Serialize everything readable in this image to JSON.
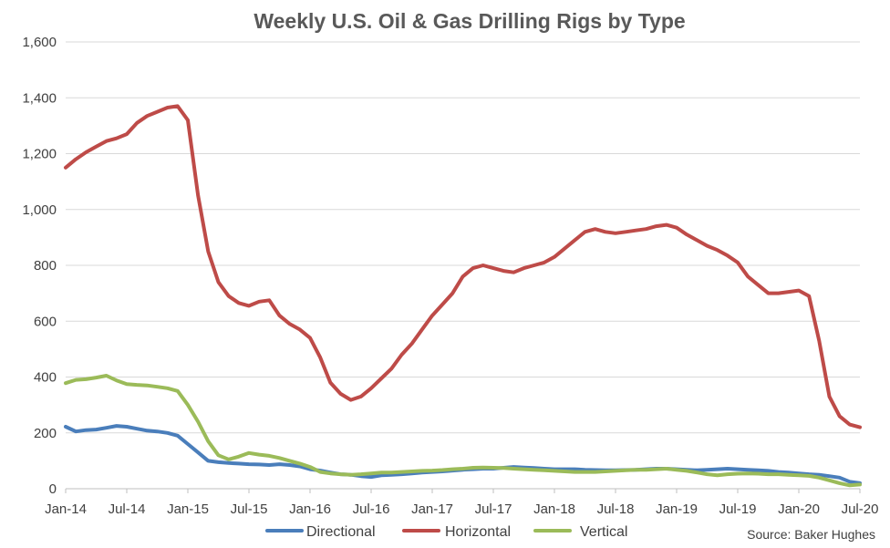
{
  "chart_data": {
    "type": "line",
    "title": "Weekly U.S. Oil & Gas Drilling Rigs by Type",
    "source": "Source: Baker Hughes",
    "xlabel": "",
    "ylabel": "",
    "ylim": [
      0,
      1600
    ],
    "yticks": [
      0,
      200,
      400,
      600,
      800,
      1000,
      1200,
      1400,
      1600
    ],
    "ytick_labels": [
      "0",
      "200",
      "400",
      "600",
      "800",
      "1,000",
      "1,200",
      "1,400",
      "1,600"
    ],
    "xlim": [
      "2014-01",
      "2020-07"
    ],
    "xtick_labels": [
      "Jan-14",
      "Jul-14",
      "Jan-15",
      "Jul-15",
      "Jan-16",
      "Jul-16",
      "Jan-17",
      "Jul-17",
      "Jan-18",
      "Jul-18",
      "Jan-19",
      "Jul-19",
      "Jan-20",
      "Jul-20"
    ],
    "grid": true,
    "legend_position": "bottom",
    "series": [
      {
        "name": "Directional",
        "color": "#4a7ebb",
        "x": [
          "2014-01",
          "2014-02",
          "2014-03",
          "2014-04",
          "2014-05",
          "2014-06",
          "2014-07",
          "2014-08",
          "2014-09",
          "2014-10",
          "2014-11",
          "2014-12",
          "2015-01",
          "2015-02",
          "2015-03",
          "2015-04",
          "2015-05",
          "2015-06",
          "2015-07",
          "2015-08",
          "2015-09",
          "2015-10",
          "2015-11",
          "2015-12",
          "2016-01",
          "2016-02",
          "2016-03",
          "2016-04",
          "2016-05",
          "2016-06",
          "2016-07",
          "2016-08",
          "2016-09",
          "2016-10",
          "2016-11",
          "2016-12",
          "2017-01",
          "2017-02",
          "2017-03",
          "2017-04",
          "2017-05",
          "2017-06",
          "2017-07",
          "2017-08",
          "2017-09",
          "2017-10",
          "2017-11",
          "2017-12",
          "2018-01",
          "2018-02",
          "2018-03",
          "2018-04",
          "2018-05",
          "2018-06",
          "2018-07",
          "2018-08",
          "2018-09",
          "2018-10",
          "2018-11",
          "2018-12",
          "2019-01",
          "2019-02",
          "2019-03",
          "2019-04",
          "2019-05",
          "2019-06",
          "2019-07",
          "2019-08",
          "2019-09",
          "2019-10",
          "2019-11",
          "2019-12",
          "2020-01",
          "2020-02",
          "2020-03",
          "2020-04",
          "2020-05",
          "2020-06",
          "2020-07"
        ],
        "values": [
          222,
          205,
          210,
          212,
          218,
          225,
          222,
          215,
          208,
          205,
          200,
          190,
          160,
          130,
          100,
          95,
          92,
          90,
          88,
          87,
          85,
          88,
          85,
          80,
          70,
          65,
          58,
          52,
          50,
          45,
          42,
          48,
          50,
          52,
          55,
          58,
          60,
          62,
          65,
          68,
          70,
          72,
          72,
          75,
          78,
          76,
          74,
          72,
          70,
          70,
          70,
          68,
          67,
          66,
          66,
          67,
          68,
          70,
          72,
          72,
          70,
          68,
          66,
          68,
          70,
          72,
          70,
          68,
          66,
          64,
          60,
          58,
          55,
          52,
          50,
          45,
          40,
          25,
          20
        ]
      },
      {
        "name": "Horizontal",
        "color": "#be4b48",
        "x": [
          "2014-01",
          "2014-02",
          "2014-03",
          "2014-04",
          "2014-05",
          "2014-06",
          "2014-07",
          "2014-08",
          "2014-09",
          "2014-10",
          "2014-11",
          "2014-12",
          "2015-01",
          "2015-02",
          "2015-03",
          "2015-04",
          "2015-05",
          "2015-06",
          "2015-07",
          "2015-08",
          "2015-09",
          "2015-10",
          "2015-11",
          "2015-12",
          "2016-01",
          "2016-02",
          "2016-03",
          "2016-04",
          "2016-05",
          "2016-06",
          "2016-07",
          "2016-08",
          "2016-09",
          "2016-10",
          "2016-11",
          "2016-12",
          "2017-01",
          "2017-02",
          "2017-03",
          "2017-04",
          "2017-05",
          "2017-06",
          "2017-07",
          "2017-08",
          "2017-09",
          "2017-10",
          "2017-11",
          "2017-12",
          "2018-01",
          "2018-02",
          "2018-03",
          "2018-04",
          "2018-05",
          "2018-06",
          "2018-07",
          "2018-08",
          "2018-09",
          "2018-10",
          "2018-11",
          "2018-12",
          "2019-01",
          "2019-02",
          "2019-03",
          "2019-04",
          "2019-05",
          "2019-06",
          "2019-07",
          "2019-08",
          "2019-09",
          "2019-10",
          "2019-11",
          "2019-12",
          "2020-01",
          "2020-02",
          "2020-03",
          "2020-04",
          "2020-05",
          "2020-06",
          "2020-07"
        ],
        "values": [
          1150,
          1180,
          1205,
          1225,
          1245,
          1255,
          1270,
          1310,
          1335,
          1350,
          1365,
          1370,
          1320,
          1050,
          850,
          740,
          690,
          665,
          655,
          670,
          675,
          620,
          590,
          570,
          540,
          470,
          380,
          340,
          318,
          330,
          360,
          395,
          430,
          480,
          520,
          570,
          620,
          660,
          700,
          760,
          790,
          800,
          790,
          780,
          775,
          790,
          800,
          810,
          830,
          860,
          890,
          920,
          930,
          920,
          915,
          920,
          925,
          930,
          940,
          945,
          935,
          910,
          890,
          870,
          855,
          835,
          810,
          760,
          730,
          700,
          700,
          705,
          710,
          690,
          530,
          330,
          260,
          230,
          220
        ]
      },
      {
        "name": "Vertical",
        "color": "#9bbb59",
        "x": [
          "2014-01",
          "2014-02",
          "2014-03",
          "2014-04",
          "2014-05",
          "2014-06",
          "2014-07",
          "2014-08",
          "2014-09",
          "2014-10",
          "2014-11",
          "2014-12",
          "2015-01",
          "2015-02",
          "2015-03",
          "2015-04",
          "2015-05",
          "2015-06",
          "2015-07",
          "2015-08",
          "2015-09",
          "2015-10",
          "2015-11",
          "2015-12",
          "2016-01",
          "2016-02",
          "2016-03",
          "2016-04",
          "2016-05",
          "2016-06",
          "2016-07",
          "2016-08",
          "2016-09",
          "2016-10",
          "2016-11",
          "2016-12",
          "2017-01",
          "2017-02",
          "2017-03",
          "2017-04",
          "2017-05",
          "2017-06",
          "2017-07",
          "2017-08",
          "2017-09",
          "2017-10",
          "2017-11",
          "2017-12",
          "2018-01",
          "2018-02",
          "2018-03",
          "2018-04",
          "2018-05",
          "2018-06",
          "2018-07",
          "2018-08",
          "2018-09",
          "2018-10",
          "2018-11",
          "2018-12",
          "2019-01",
          "2019-02",
          "2019-03",
          "2019-04",
          "2019-05",
          "2019-06",
          "2019-07",
          "2019-08",
          "2019-09",
          "2019-10",
          "2019-11",
          "2019-12",
          "2020-01",
          "2020-02",
          "2020-03",
          "2020-04",
          "2020-05",
          "2020-06",
          "2020-07"
        ],
        "values": [
          378,
          390,
          392,
          398,
          405,
          388,
          375,
          372,
          370,
          365,
          360,
          350,
          300,
          240,
          170,
          120,
          105,
          115,
          128,
          122,
          118,
          110,
          100,
          90,
          78,
          60,
          55,
          52,
          50,
          52,
          55,
          58,
          58,
          60,
          62,
          64,
          65,
          67,
          70,
          72,
          75,
          76,
          75,
          74,
          72,
          70,
          68,
          66,
          64,
          62,
          60,
          60,
          60,
          62,
          64,
          66,
          68,
          68,
          70,
          72,
          68,
          64,
          58,
          52,
          48,
          52,
          54,
          55,
          54,
          52,
          52,
          50,
          48,
          46,
          40,
          30,
          20,
          12,
          15
        ]
      }
    ]
  }
}
